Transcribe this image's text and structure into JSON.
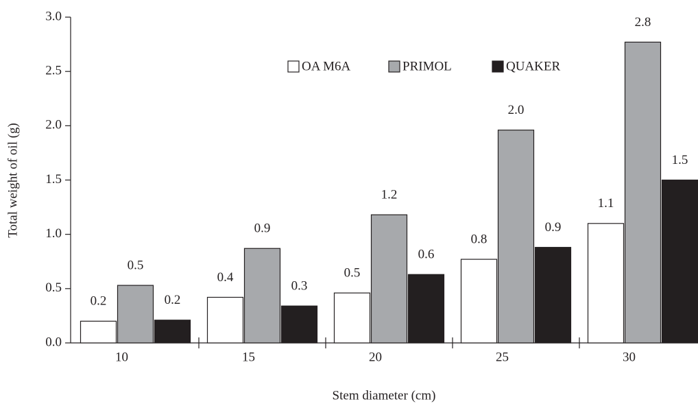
{
  "chart_data": {
    "type": "bar",
    "x_label": "Stem diameter (cm)",
    "y_label": "Total weight of oil (g)",
    "categories": [
      "10",
      "15",
      "20",
      "25",
      "30"
    ],
    "series": [
      {
        "name": "OA M6A",
        "color": "#ffffff",
        "values": [
          0.2,
          0.42,
          0.46,
          0.77,
          1.1
        ],
        "value_labels": [
          "0.2",
          "0.4",
          "0.5",
          "0.8",
          "1.1"
        ]
      },
      {
        "name": "PRIMOL",
        "color": "#a7a9ac",
        "values": [
          0.53,
          0.87,
          1.18,
          1.96,
          2.77
        ],
        "value_labels": [
          "0.5",
          "0.9",
          "1.2",
          "2.0",
          "2.8"
        ]
      },
      {
        "name": "QUAKER",
        "color": "#231f20",
        "values": [
          0.21,
          0.34,
          0.63,
          0.88,
          1.5
        ],
        "value_labels": [
          "0.2",
          "0.3",
          "0.6",
          "0.9",
          "1.5"
        ]
      }
    ],
    "ylim": [
      0,
      3
    ],
    "yticks": [
      {
        "value": 0,
        "label": "0.0"
      },
      0.5,
      {
        "value": 1,
        "label": "1.0"
      },
      1.5,
      {
        "value": 2,
        "label": "2.0"
      },
      2.5,
      {
        "value": 3,
        "label": "3.0"
      }
    ],
    "legend": "top"
  }
}
